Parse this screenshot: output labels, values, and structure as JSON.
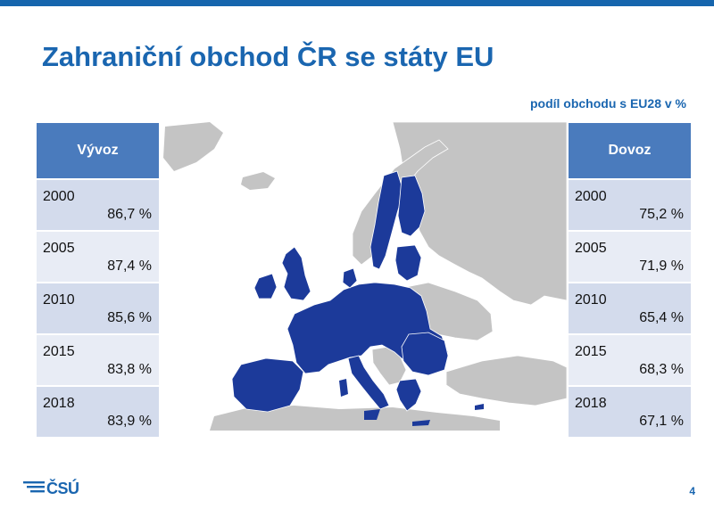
{
  "title": "Zahraniční obchod ČR se státy EU",
  "subtitle": "podíl obchodu s EU28 v %",
  "export": {
    "header": "Vývoz",
    "rows": [
      {
        "year": "2000",
        "value": "86,7 %"
      },
      {
        "year": "2005",
        "value": "87,4 %"
      },
      {
        "year": "2010",
        "value": "85,6 %"
      },
      {
        "year": "2015",
        "value": "83,8 %"
      },
      {
        "year": "2018",
        "value": "83,9 %"
      }
    ]
  },
  "import": {
    "header": "Dovoz",
    "rows": [
      {
        "year": "2000",
        "value": "75,2 %"
      },
      {
        "year": "2005",
        "value": "71,9 %"
      },
      {
        "year": "2010",
        "value": "65,4 %"
      },
      {
        "year": "2015",
        "value": "68,3 %"
      },
      {
        "year": "2018",
        "value": "67,1 %"
      }
    ]
  },
  "colors": {
    "accent": "#1a66b0",
    "table_header": "#4a7bbd",
    "row_odd": "#d3dbec",
    "row_even": "#e8ecf5",
    "eu_fill": "#1c3a9a",
    "non_eu_fill": "#c4c4c4"
  },
  "logo": {
    "text": "ČSÚ",
    "icon": "csu-logo-lines-icon"
  },
  "page_number": "4"
}
